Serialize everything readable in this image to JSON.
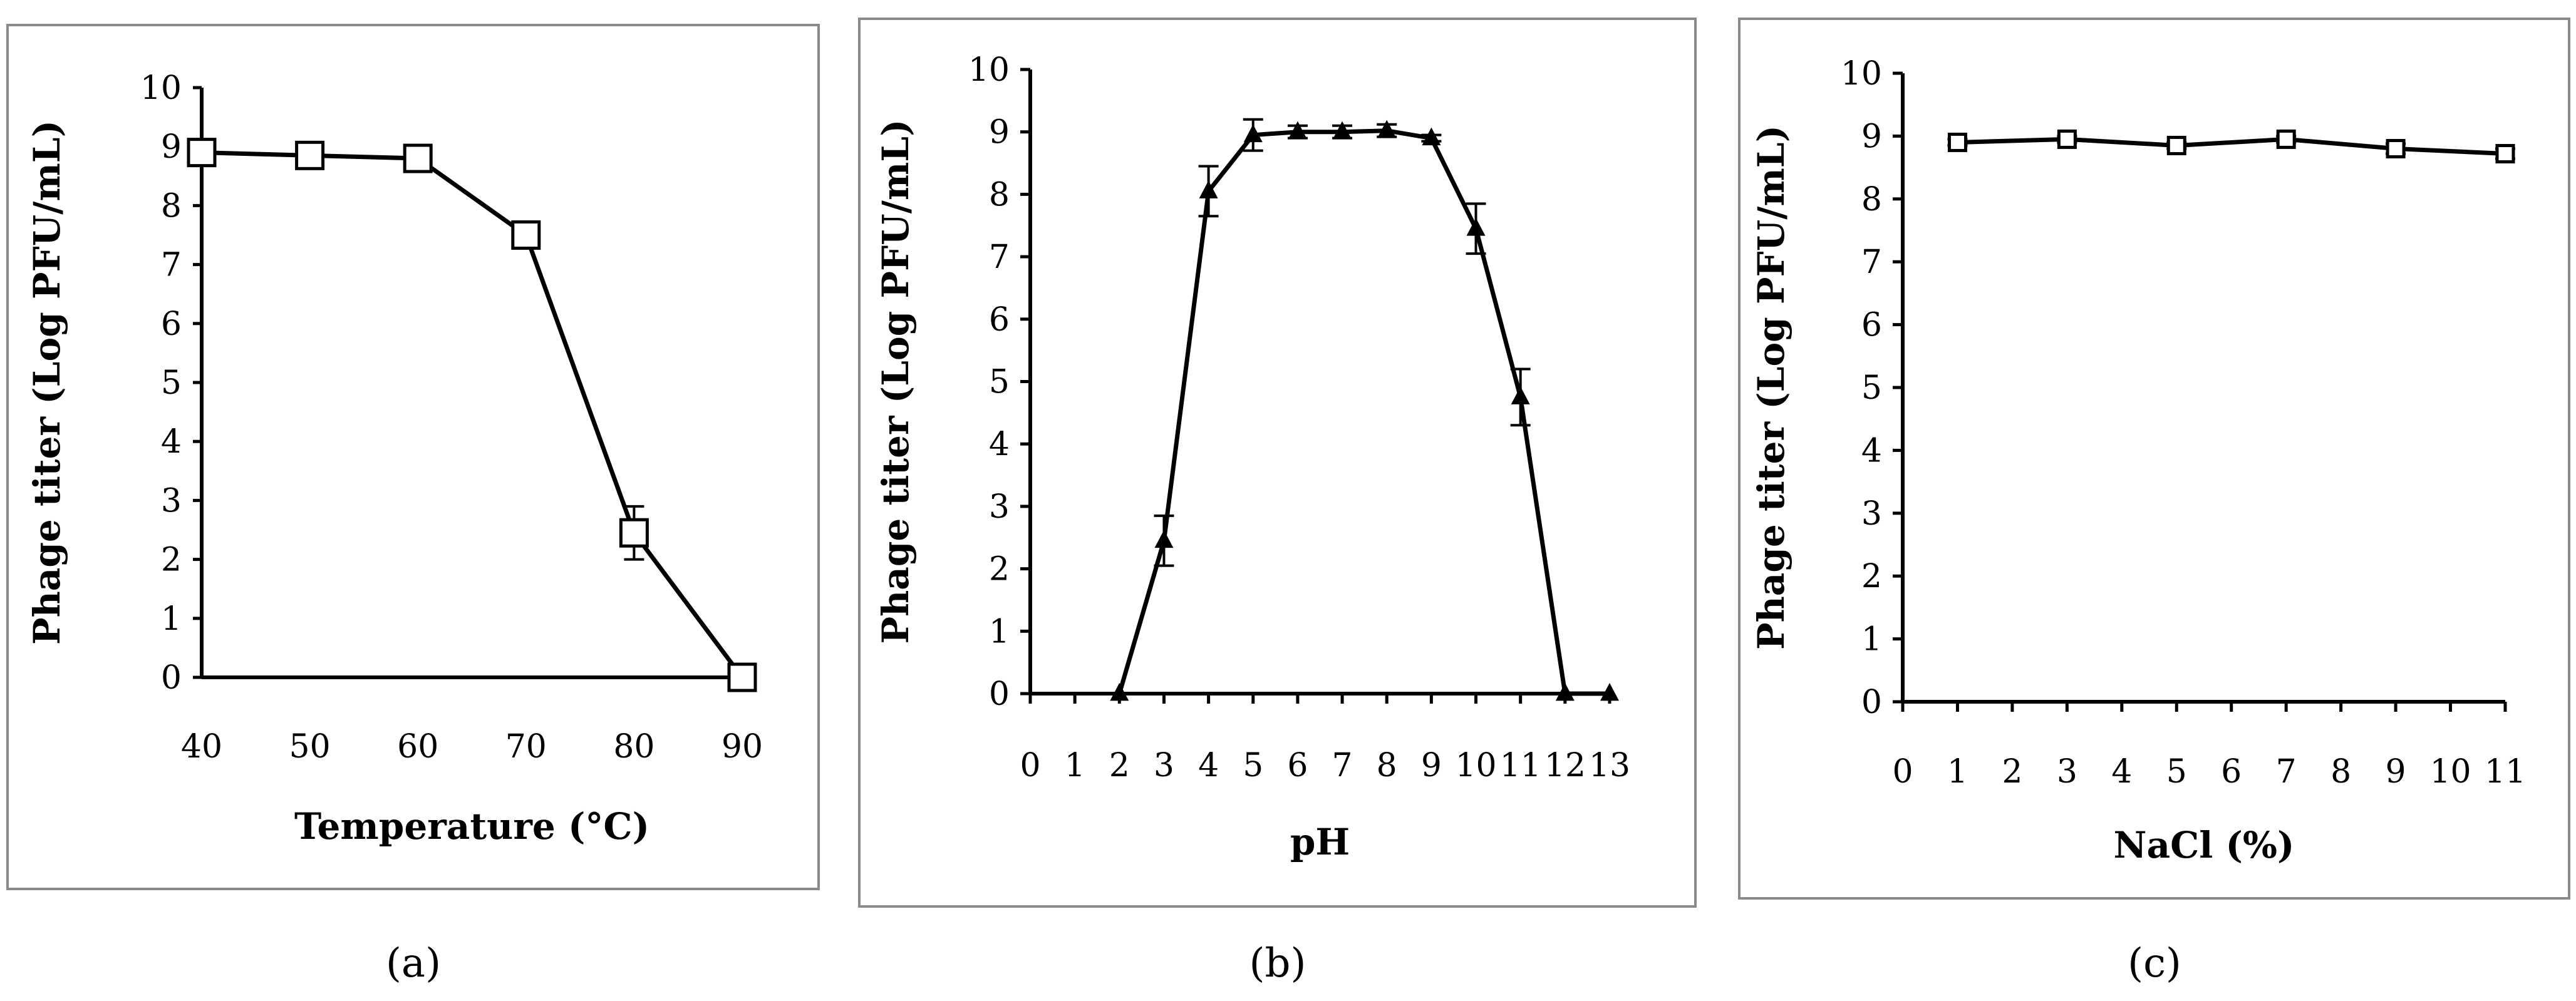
{
  "chart_data": [
    {
      "type": "line",
      "panel_label": "(a)",
      "xlabel": "Temperature (°C)",
      "ylabel": "Phage titer (Log PFU/mL)",
      "xlim": [
        40,
        90
      ],
      "ylim": [
        0,
        10
      ],
      "x_ticks": [
        "40",
        "50",
        "60",
        "70",
        "80",
        "90"
      ],
      "y_ticks": [
        "0",
        "1",
        "2",
        "3",
        "4",
        "5",
        "6",
        "7",
        "8",
        "9",
        "10"
      ],
      "marker": "square",
      "series": [
        {
          "x": [
            40,
            50,
            60,
            70,
            80,
            90
          ],
          "y": [
            8.9,
            8.85,
            8.8,
            7.5,
            2.45,
            0
          ],
          "error": [
            0,
            0,
            0,
            0,
            0.45,
            0
          ]
        }
      ]
    },
    {
      "type": "line",
      "panel_label": "(b)",
      "xlabel": "pH",
      "ylabel": "Phage titer (Log PFU/mL)",
      "xlim": [
        0,
        13
      ],
      "ylim": [
        0,
        10
      ],
      "x_ticks": [
        "0",
        "1",
        "2",
        "3",
        "4",
        "5",
        "6",
        "7",
        "8",
        "9",
        "10",
        "11",
        "12",
        "13"
      ],
      "y_ticks": [
        "0",
        "1",
        "2",
        "3",
        "4",
        "5",
        "6",
        "7",
        "8",
        "9",
        "10"
      ],
      "marker": "triangle",
      "series": [
        {
          "x": [
            2,
            3,
            4,
            5,
            6,
            7,
            8,
            9,
            10,
            11,
            12,
            13
          ],
          "y": [
            0,
            2.45,
            8.05,
            8.95,
            9.0,
            9.0,
            9.02,
            8.9,
            7.45,
            4.75,
            0,
            0
          ],
          "error": [
            0,
            0.4,
            0.4,
            0.25,
            0.1,
            0.1,
            0.1,
            0.05,
            0.4,
            0.45,
            0,
            0
          ]
        }
      ]
    },
    {
      "type": "line",
      "panel_label": "(c)",
      "xlabel": "NaCl (%)",
      "ylabel": "Phage titer (Log PFU/mL)",
      "xlim": [
        0,
        11
      ],
      "ylim": [
        0,
        10
      ],
      "x_ticks": [
        "0",
        "1",
        "2",
        "3",
        "4",
        "5",
        "6",
        "7",
        "8",
        "9",
        "10",
        "11"
      ],
      "y_ticks": [
        "0",
        "1",
        "2",
        "3",
        "4",
        "5",
        "6",
        "7",
        "8",
        "9",
        "10"
      ],
      "marker": "square",
      "series": [
        {
          "x": [
            1,
            3,
            5,
            7,
            9,
            11
          ],
          "y": [
            8.9,
            8.95,
            8.85,
            8.95,
            8.8,
            8.72
          ],
          "error": [
            0.05,
            0.05,
            0.05,
            0.05,
            0.08,
            0.08
          ]
        }
      ]
    }
  ]
}
